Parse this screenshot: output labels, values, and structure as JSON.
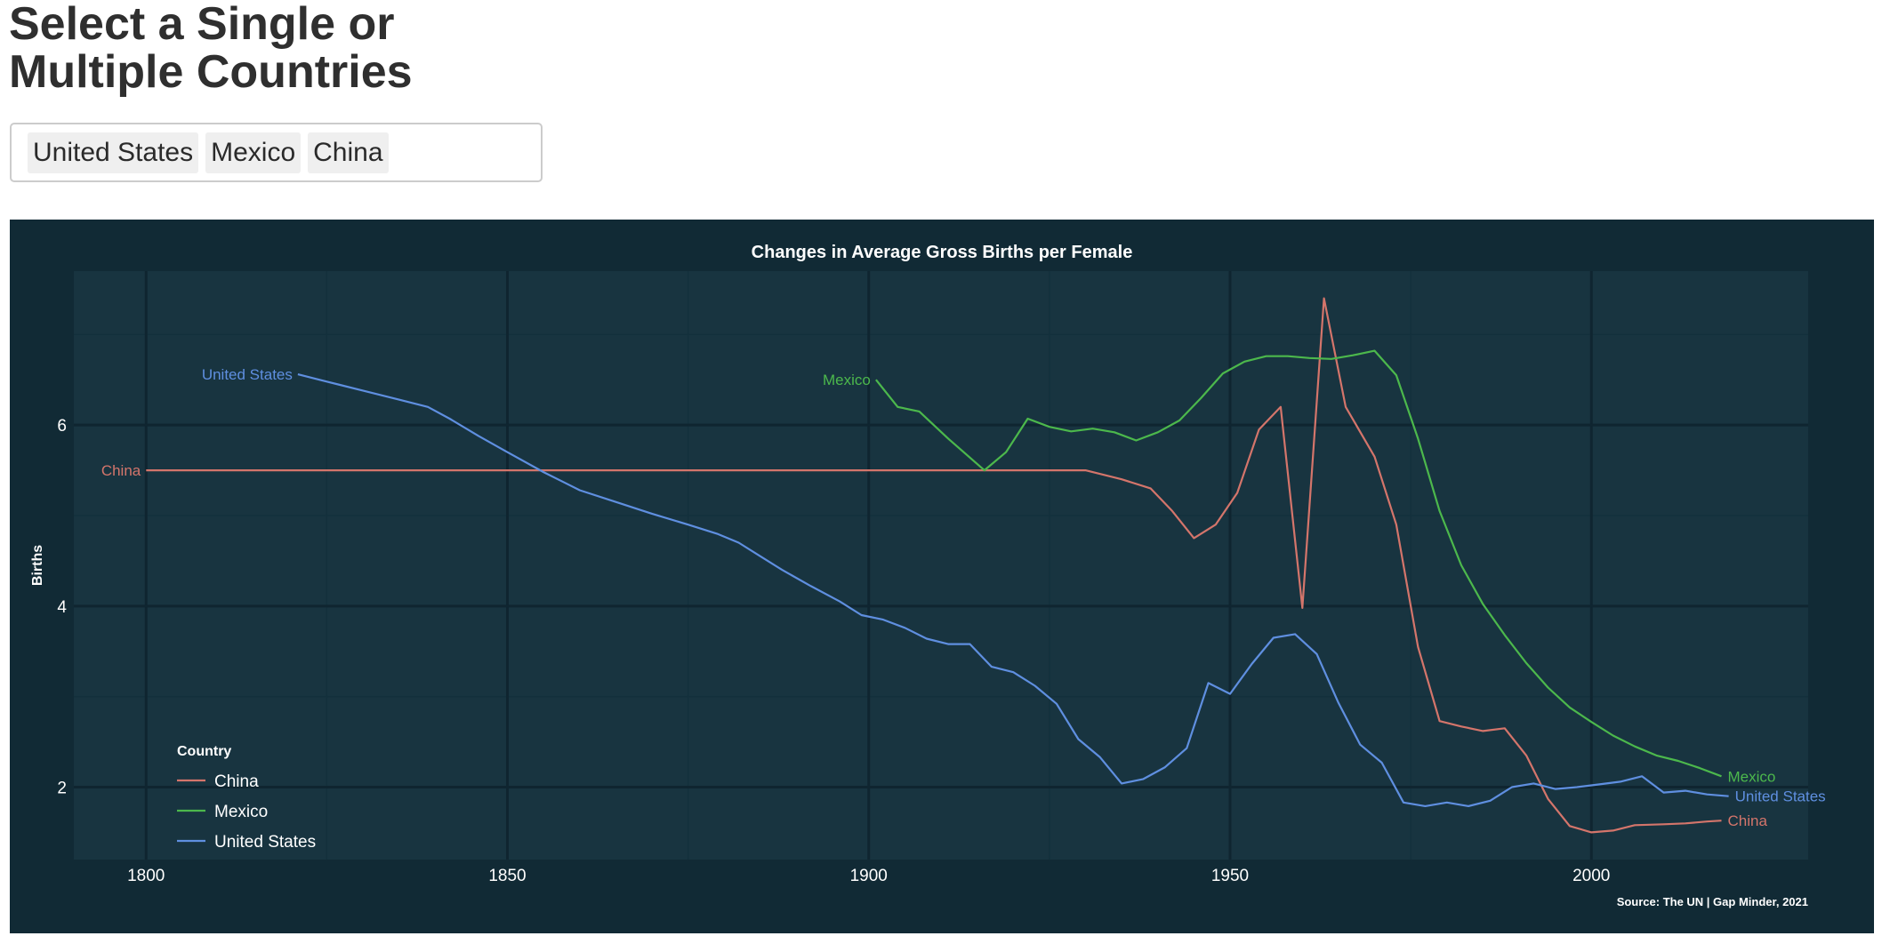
{
  "page": {
    "title": "Select a Single or Multiple Countries"
  },
  "selector": {
    "chips": [
      "United States",
      "Mexico",
      "China"
    ]
  },
  "chart_data": {
    "type": "line",
    "title": "Changes in Average Gross Births per Female",
    "xlabel": "",
    "ylabel": "Births",
    "caption": "Source: The UN | Gap Minder, 2021",
    "xlim": [
      1790,
      2030
    ],
    "ylim": [
      1.2,
      7.7
    ],
    "x_ticks": [
      1800,
      1850,
      1900,
      1950,
      2000
    ],
    "y_ticks": [
      2,
      4,
      6
    ],
    "grid": true,
    "legend": {
      "title": "Country",
      "placement": "bottom-left",
      "entries": [
        "China",
        "Mexico",
        "United States"
      ]
    },
    "colors": {
      "background": "#112a35",
      "panel": "#183440",
      "grid_major": "#0f2530",
      "grid_minor": "#13303c",
      "text": "#ffffff",
      "China": "#d4756b",
      "Mexico": "#4cb84c",
      "United States": "#5f8fe0"
    },
    "series": [
      {
        "name": "China",
        "end_label": "China",
        "points": [
          [
            1800,
            5.5
          ],
          [
            1930,
            5.5
          ],
          [
            1935,
            5.4
          ],
          [
            1939,
            5.3
          ],
          [
            1942,
            5.05
          ],
          [
            1945,
            4.75
          ],
          [
            1948,
            4.9
          ],
          [
            1951,
            5.25
          ],
          [
            1954,
            5.95
          ],
          [
            1957,
            6.2
          ],
          [
            1960,
            3.98
          ],
          [
            1963,
            7.4
          ],
          [
            1966,
            6.2
          ],
          [
            1970,
            5.65
          ],
          [
            1973,
            4.9
          ],
          [
            1976,
            3.55
          ],
          [
            1979,
            2.73
          ],
          [
            1982,
            2.67
          ],
          [
            1985,
            2.62
          ],
          [
            1988,
            2.65
          ],
          [
            1991,
            2.35
          ],
          [
            1994,
            1.87
          ],
          [
            1997,
            1.57
          ],
          [
            2000,
            1.5
          ],
          [
            2003,
            1.52
          ],
          [
            2006,
            1.58
          ],
          [
            2010,
            1.59
          ],
          [
            2013,
            1.6
          ],
          [
            2016,
            1.62
          ],
          [
            2018,
            1.63
          ]
        ]
      },
      {
        "name": "Mexico",
        "end_label": "Mexico",
        "points": [
          [
            1901,
            6.5
          ],
          [
            1904,
            6.2
          ],
          [
            1907,
            6.15
          ],
          [
            1911,
            5.85
          ],
          [
            1916,
            5.5
          ],
          [
            1919,
            5.7
          ],
          [
            1922,
            6.07
          ],
          [
            1925,
            5.98
          ],
          [
            1928,
            5.93
          ],
          [
            1931,
            5.96
          ],
          [
            1934,
            5.92
          ],
          [
            1937,
            5.83
          ],
          [
            1940,
            5.92
          ],
          [
            1943,
            6.05
          ],
          [
            1946,
            6.3
          ],
          [
            1949,
            6.57
          ],
          [
            1952,
            6.7
          ],
          [
            1955,
            6.76
          ],
          [
            1958,
            6.76
          ],
          [
            1961,
            6.74
          ],
          [
            1964,
            6.73
          ],
          [
            1967,
            6.77
          ],
          [
            1970,
            6.82
          ],
          [
            1973,
            6.55
          ],
          [
            1976,
            5.85
          ],
          [
            1979,
            5.05
          ],
          [
            1982,
            4.45
          ],
          [
            1985,
            4.02
          ],
          [
            1988,
            3.68
          ],
          [
            1991,
            3.37
          ],
          [
            1994,
            3.1
          ],
          [
            1997,
            2.88
          ],
          [
            2000,
            2.72
          ],
          [
            2003,
            2.57
          ],
          [
            2006,
            2.45
          ],
          [
            2009,
            2.35
          ],
          [
            2012,
            2.29
          ],
          [
            2015,
            2.21
          ],
          [
            2018,
            2.12
          ]
        ]
      },
      {
        "name": "United States",
        "end_label": "United States",
        "points": [
          [
            1821,
            6.56
          ],
          [
            1825,
            6.48
          ],
          [
            1830,
            6.38
          ],
          [
            1835,
            6.28
          ],
          [
            1839,
            6.2
          ],
          [
            1842,
            6.07
          ],
          [
            1846,
            5.88
          ],
          [
            1850,
            5.7
          ],
          [
            1855,
            5.48
          ],
          [
            1860,
            5.28
          ],
          [
            1865,
            5.15
          ],
          [
            1870,
            5.02
          ],
          [
            1875,
            4.9
          ],
          [
            1879,
            4.8
          ],
          [
            1882,
            4.7
          ],
          [
            1885,
            4.55
          ],
          [
            1888,
            4.4
          ],
          [
            1892,
            4.22
          ],
          [
            1896,
            4.05
          ],
          [
            1899,
            3.9
          ],
          [
            1902,
            3.85
          ],
          [
            1905,
            3.76
          ],
          [
            1908,
            3.64
          ],
          [
            1911,
            3.58
          ],
          [
            1914,
            3.58
          ],
          [
            1917,
            3.33
          ],
          [
            1920,
            3.27
          ],
          [
            1923,
            3.12
          ],
          [
            1926,
            2.92
          ],
          [
            1929,
            2.53
          ],
          [
            1932,
            2.33
          ],
          [
            1935,
            2.04
          ],
          [
            1938,
            2.09
          ],
          [
            1941,
            2.22
          ],
          [
            1944,
            2.43
          ],
          [
            1947,
            3.15
          ],
          [
            1950,
            3.03
          ],
          [
            1953,
            3.36
          ],
          [
            1956,
            3.65
          ],
          [
            1959,
            3.69
          ],
          [
            1962,
            3.47
          ],
          [
            1965,
            2.93
          ],
          [
            1968,
            2.47
          ],
          [
            1971,
            2.27
          ],
          [
            1974,
            1.83
          ],
          [
            1977,
            1.79
          ],
          [
            1980,
            1.83
          ],
          [
            1983,
            1.79
          ],
          [
            1986,
            1.85
          ],
          [
            1989,
            2.0
          ],
          [
            1992,
            2.04
          ],
          [
            1995,
            1.98
          ],
          [
            1998,
            2.0
          ],
          [
            2001,
            2.03
          ],
          [
            2004,
            2.06
          ],
          [
            2007,
            2.12
          ],
          [
            2010,
            1.94
          ],
          [
            2013,
            1.96
          ],
          [
            2016,
            1.92
          ],
          [
            2019,
            1.9
          ]
        ]
      }
    ]
  }
}
